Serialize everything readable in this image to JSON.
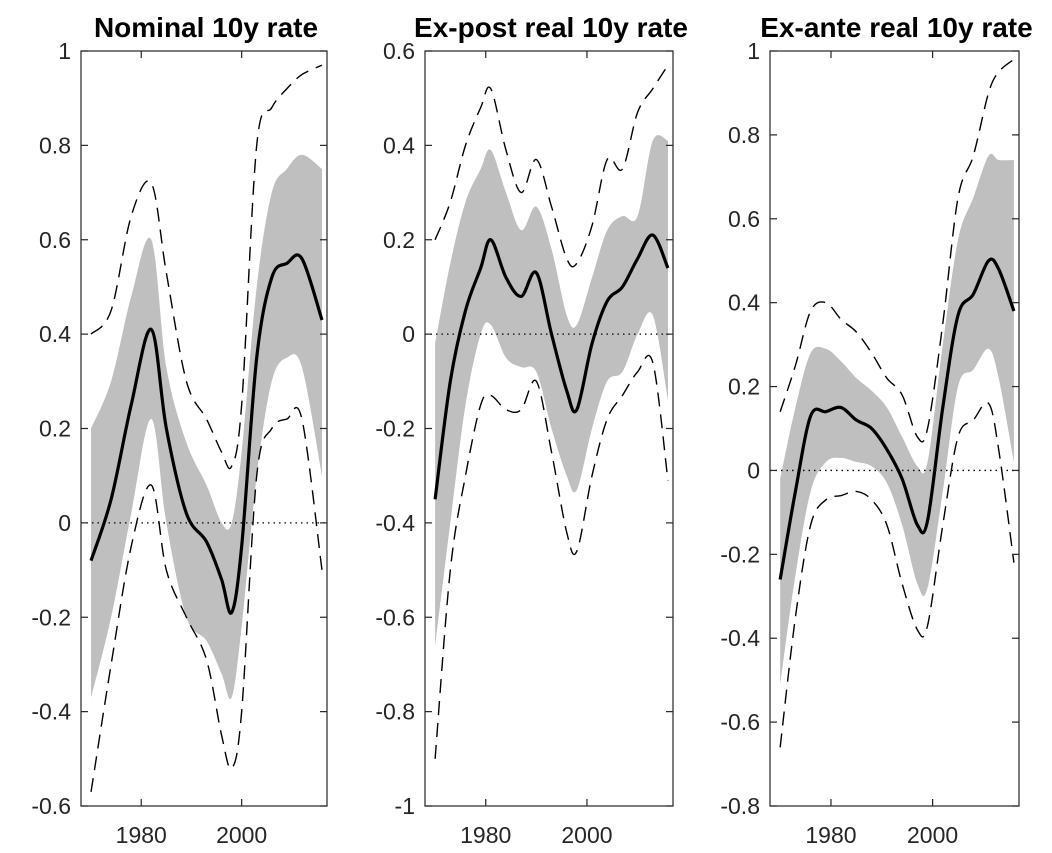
{
  "colors": {
    "band": "#bfbfbf",
    "line": "#000000",
    "axis": "#262626"
  },
  "chart_data": [
    {
      "type": "line",
      "title": "Nominal 10y rate",
      "xlabel": "",
      "ylabel": "",
      "xlim": [
        1968,
        2017
      ],
      "ylim": [
        -0.6,
        1.0
      ],
      "yticks": [
        -0.6,
        -0.4,
        -0.2,
        0,
        0.2,
        0.4,
        0.6,
        0.8,
        1
      ],
      "yticklabels": [
        "-0.6",
        "-0.4",
        "-0.2",
        "0",
        "0.2",
        "0.4",
        "0.6",
        "0.8",
        "1"
      ],
      "xticks": [
        1980,
        2000
      ],
      "xticklabels": [
        "1980",
        "2000"
      ],
      "zero_line": 0,
      "x": [
        1970,
        1974,
        1978,
        1982,
        1985,
        1989,
        1993,
        1996,
        1998,
        2000,
        2003,
        2006,
        2009,
        2012,
        2016
      ],
      "series": [
        {
          "role": "inner_lower",
          "values": [
            -0.37,
            -0.2,
            0.02,
            0.22,
            0.0,
            -0.2,
            -0.25,
            -0.32,
            -0.37,
            -0.22,
            0.1,
            0.3,
            0.35,
            0.33,
            0.1
          ]
        },
        {
          "role": "inner_upper",
          "values": [
            0.2,
            0.3,
            0.48,
            0.6,
            0.33,
            0.17,
            0.08,
            0.0,
            0.0,
            0.15,
            0.5,
            0.7,
            0.75,
            0.78,
            0.75
          ]
        },
        {
          "role": "median",
          "values": [
            -0.08,
            0.05,
            0.25,
            0.41,
            0.2,
            0.02,
            -0.04,
            -0.12,
            -0.19,
            -0.05,
            0.35,
            0.52,
            0.55,
            0.56,
            0.43
          ]
        },
        {
          "role": "outer_lower",
          "values": [
            -0.57,
            -0.3,
            -0.05,
            0.08,
            -0.1,
            -0.2,
            -0.29,
            -0.45,
            -0.52,
            -0.4,
            0.1,
            0.2,
            0.22,
            0.22,
            -0.1
          ]
        },
        {
          "role": "outer_upper",
          "values": [
            0.4,
            0.45,
            0.65,
            0.72,
            0.53,
            0.3,
            0.22,
            0.15,
            0.12,
            0.25,
            0.8,
            0.88,
            0.92,
            0.95,
            0.97
          ]
        }
      ]
    },
    {
      "type": "line",
      "title": "Ex-post real 10y rate",
      "xlabel": "",
      "ylabel": "",
      "xlim": [
        1968,
        2017
      ],
      "ylim": [
        -1.0,
        0.6
      ],
      "yticks": [
        -1,
        -0.8,
        -0.6,
        -0.4,
        -0.2,
        0,
        0.2,
        0.4,
        0.6
      ],
      "yticklabels": [
        "-1",
        "-0.8",
        "-0.6",
        "-0.4",
        "-0.2",
        "0",
        "0.2",
        "0.4",
        "0.6"
      ],
      "xticks": [
        1980,
        2000
      ],
      "xticklabels": [
        "1980",
        "2000"
      ],
      "zero_line": 0,
      "x": [
        1970,
        1973,
        1976,
        1979,
        1981,
        1984,
        1987,
        1990,
        1993,
        1996,
        1998,
        2001,
        2004,
        2007,
        2010,
        2013,
        2016
      ],
      "series": [
        {
          "role": "inner_lower",
          "values": [
            -0.66,
            -0.4,
            -0.15,
            0.0,
            0.02,
            -0.05,
            -0.07,
            -0.08,
            -0.2,
            -0.3,
            -0.33,
            -0.2,
            -0.1,
            -0.08,
            0.0,
            0.04,
            -0.14
          ]
        },
        {
          "role": "inner_upper",
          "values": [
            -0.02,
            0.15,
            0.28,
            0.35,
            0.39,
            0.3,
            0.22,
            0.27,
            0.18,
            0.04,
            0.02,
            0.12,
            0.22,
            0.25,
            0.25,
            0.41,
            0.41
          ]
        },
        {
          "role": "median",
          "values": [
            -0.35,
            -0.1,
            0.05,
            0.14,
            0.2,
            0.12,
            0.08,
            0.13,
            0.0,
            -0.12,
            -0.16,
            -0.02,
            0.07,
            0.1,
            0.16,
            0.21,
            0.14
          ]
        },
        {
          "role": "outer_lower",
          "values": [
            -0.9,
            -0.5,
            -0.3,
            -0.15,
            -0.13,
            -0.16,
            -0.16,
            -0.1,
            -0.25,
            -0.42,
            -0.46,
            -0.3,
            -0.18,
            -0.13,
            -0.08,
            -0.06,
            -0.31
          ]
        },
        {
          "role": "outer_upper",
          "values": [
            0.2,
            0.28,
            0.4,
            0.48,
            0.52,
            0.39,
            0.3,
            0.37,
            0.27,
            0.16,
            0.15,
            0.23,
            0.37,
            0.35,
            0.47,
            0.52,
            0.57
          ]
        }
      ]
    },
    {
      "type": "line",
      "title": "Ex-ante real 10y rate",
      "xlabel": "",
      "ylabel": "",
      "xlim": [
        1968,
        2017
      ],
      "ylim": [
        -0.8,
        1.0
      ],
      "yticks": [
        -0.8,
        -0.6,
        -0.4,
        -0.2,
        0,
        0.2,
        0.4,
        0.6,
        0.8,
        1
      ],
      "yticklabels": [
        "-0.8",
        "-0.6",
        "-0.4",
        "-0.2",
        "0",
        "0.2",
        "0.4",
        "0.6",
        "0.8",
        "1"
      ],
      "xticks": [
        1980,
        2000
      ],
      "xticklabels": [
        "1980",
        "2000"
      ],
      "zero_line": 0,
      "x": [
        1970,
        1973,
        1976,
        1979,
        1982,
        1985,
        1988,
        1991,
        1994,
        1997,
        1999,
        2002,
        2005,
        2008,
        2011,
        2013,
        2016
      ],
      "series": [
        {
          "role": "inner_lower",
          "values": [
            -0.51,
            -0.25,
            -0.05,
            0.02,
            0.03,
            0.02,
            0.01,
            -0.03,
            -0.13,
            -0.27,
            -0.28,
            -0.05,
            0.2,
            0.24,
            0.29,
            0.22,
            0.02
          ]
        },
        {
          "role": "inner_upper",
          "values": [
            -0.02,
            0.15,
            0.28,
            0.29,
            0.26,
            0.22,
            0.19,
            0.15,
            0.08,
            0.01,
            0.02,
            0.3,
            0.55,
            0.65,
            0.75,
            0.74,
            0.74
          ]
        },
        {
          "role": "median",
          "values": [
            -0.26,
            -0.05,
            0.13,
            0.14,
            0.15,
            0.12,
            0.1,
            0.05,
            -0.02,
            -0.13,
            -0.12,
            0.15,
            0.37,
            0.42,
            0.5,
            0.48,
            0.38
          ]
        },
        {
          "role": "outer_lower",
          "values": [
            -0.66,
            -0.35,
            -0.13,
            -0.07,
            -0.06,
            -0.05,
            -0.07,
            -0.13,
            -0.27,
            -0.38,
            -0.37,
            -0.13,
            0.08,
            0.12,
            0.16,
            0.05,
            -0.22
          ]
        },
        {
          "role": "outer_upper",
          "values": [
            0.14,
            0.25,
            0.38,
            0.4,
            0.36,
            0.33,
            0.28,
            0.22,
            0.18,
            0.08,
            0.1,
            0.35,
            0.65,
            0.75,
            0.9,
            0.95,
            0.98
          ]
        }
      ]
    }
  ]
}
